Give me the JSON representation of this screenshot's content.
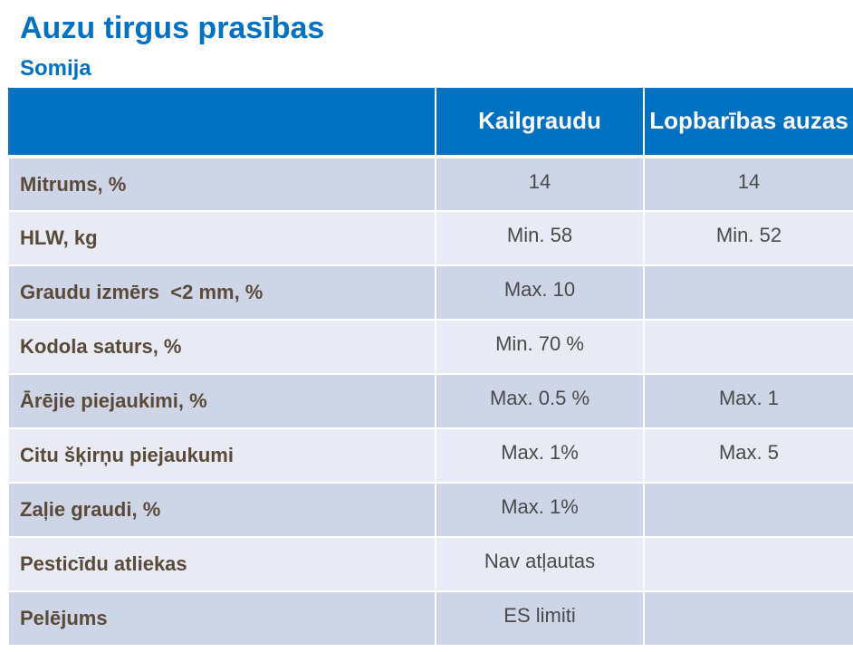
{
  "title": "Auzu tirgus prasības",
  "subtitle": "Somija",
  "table": {
    "headers": [
      "",
      "Kailgraudu",
      "Lopbarības auzas"
    ],
    "rows": [
      {
        "label": "Mitrums, %",
        "kailgraudu": "14",
        "lopbaribas": "14"
      },
      {
        "label": "HLW, kg",
        "kailgraudu": "Min. 58",
        "lopbaribas": "Min. 52"
      },
      {
        "label": "Graudu izmērs  <2 mm, %",
        "kailgraudu": "Max. 10",
        "lopbaribas": ""
      },
      {
        "label": "Kodola saturs, %",
        "kailgraudu": "Min. 70 %",
        "lopbaribas": ""
      },
      {
        "label": "Ārējie piejaukimi, %",
        "kailgraudu": "Max. 0.5 %",
        "lopbaribas": "Max. 1"
      },
      {
        "label": "Citu šķirņu piejaukumi",
        "kailgraudu": "Max. 1%",
        "lopbaribas": "Max. 5"
      },
      {
        "label": "Zaļie graudi, %",
        "kailgraudu": "Max. 1%",
        "lopbaribas": ""
      },
      {
        "label": "Pesticīdu atliekas",
        "kailgraudu": "Nav atļautas",
        "lopbaribas": ""
      },
      {
        "label": "Pelējums",
        "kailgraudu": "ES limiti",
        "lopbaribas": ""
      }
    ]
  }
}
